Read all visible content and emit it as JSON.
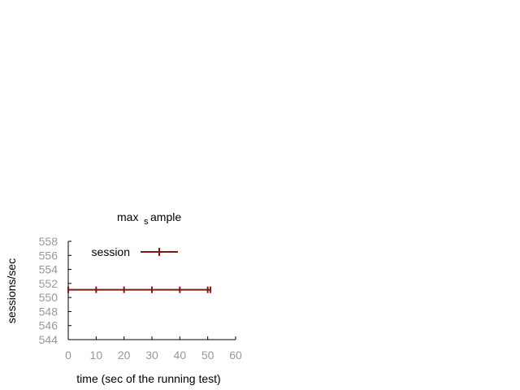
{
  "chart_data": {
    "type": "line",
    "title_main": "max",
    "title_sub": "s",
    "title_rest": "ample",
    "xlabel": "time (sec of the running test)",
    "ylabel": "sessions/sec",
    "xlim": [
      0,
      60
    ],
    "ylim": [
      544,
      558
    ],
    "xticks": [
      "0",
      "10",
      "20",
      "30",
      "40",
      "50",
      "60"
    ],
    "yticks": [
      "544",
      "546",
      "548",
      "550",
      "552",
      "554",
      "556",
      "558"
    ],
    "grid": false,
    "legend_position": "top-left",
    "series": [
      {
        "name": "session",
        "color": "#7f1a0e",
        "marker": "vertical-tick",
        "x": [
          0,
          10,
          20,
          30,
          40,
          50,
          51
        ],
        "y": [
          551.1,
          551.1,
          551.1,
          551.1,
          551.1,
          551.1,
          551.1
        ]
      }
    ]
  }
}
